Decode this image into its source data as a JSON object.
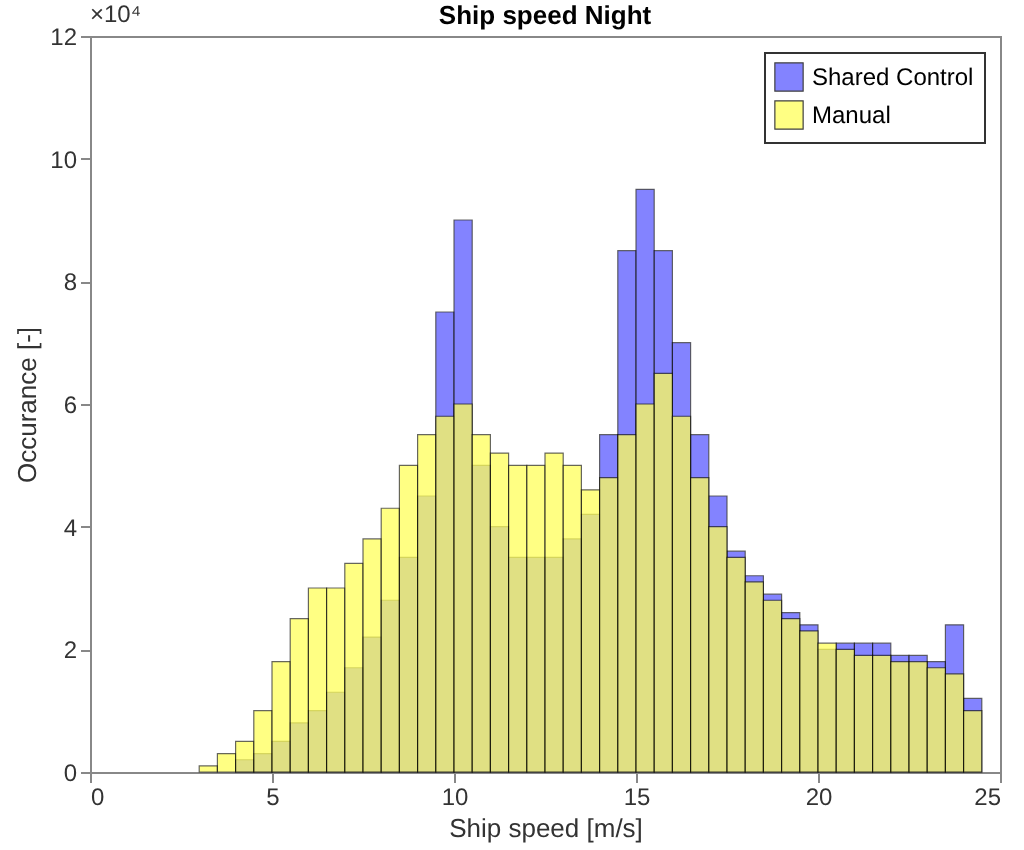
{
  "chart_data": {
    "type": "histogram",
    "title": "Ship speed Night",
    "xlabel": "Ship speed [m/s]",
    "ylabel": "Occurance [-]",
    "annotations": [
      "×10⁴"
    ],
    "bins": [
      3,
      3.5,
      4,
      4.5,
      5,
      5.5,
      6,
      6.5,
      7,
      7.5,
      8,
      8.5,
      9,
      9.5,
      10,
      10.5,
      11,
      11.5,
      12,
      12.5,
      13,
      13.5,
      14,
      14.5,
      15,
      15.5,
      16,
      16.5,
      17,
      17.5,
      18,
      18.5,
      19,
      19.5,
      20,
      20.5,
      21,
      21.5,
      22,
      22.5,
      23,
      23.5,
      24,
      24.5
    ],
    "series": [
      {
        "name": "Shared Control",
        "color": "#5a5aff",
        "values": [
          null,
          null,
          0.2,
          0.3,
          0.5,
          0.8,
          1.0,
          1.3,
          1.7,
          2.2,
          2.8,
          3.5,
          4.5,
          7.5,
          9.0,
          5.0,
          4.0,
          3.5,
          3.5,
          3.5,
          3.8,
          4.2,
          5.5,
          8.5,
          9.5,
          8.5,
          7.0,
          5.5,
          4.5,
          3.6,
          3.2,
          2.9,
          2.6,
          2.4,
          2.0,
          2.1,
          2.1,
          2.1,
          1.9,
          1.9,
          1.8,
          2.4,
          1.2
        ]
      },
      {
        "name": "Manual",
        "color": "#ffff5a",
        "values": [
          0.1,
          0.3,
          0.5,
          1.0,
          1.8,
          2.5,
          3.0,
          3.0,
          3.4,
          3.8,
          4.3,
          5.0,
          5.5,
          5.8,
          6.0,
          5.5,
          5.2,
          5.0,
          5.0,
          5.2,
          5.0,
          4.6,
          4.8,
          5.5,
          6.0,
          6.5,
          5.8,
          4.8,
          4.0,
          3.5,
          3.1,
          2.8,
          2.5,
          2.3,
          2.1,
          2.0,
          1.9,
          1.9,
          1.8,
          1.8,
          1.7,
          1.6,
          1.0
        ]
      }
    ],
    "xlim": [
      0,
      25
    ],
    "xticks": [
      0,
      5,
      10,
      15,
      20,
      25
    ],
    "ylim": [
      0,
      12
    ],
    "yticks": [
      0,
      2,
      4,
      6,
      8,
      10,
      12
    ],
    "legend": "top right",
    "grid": false
  }
}
